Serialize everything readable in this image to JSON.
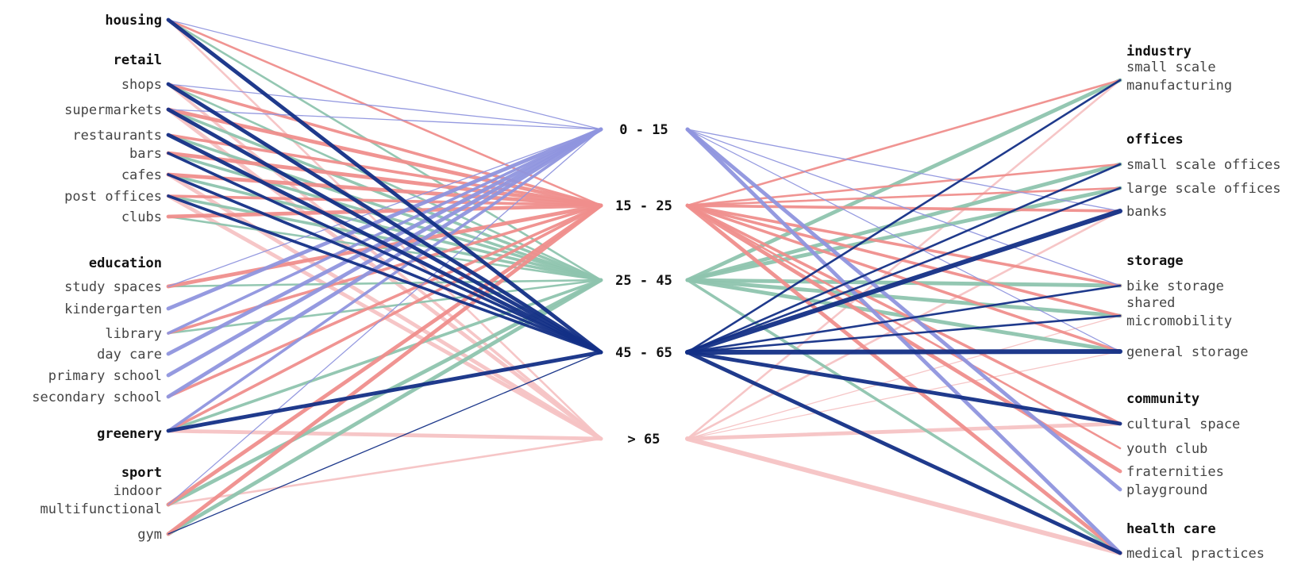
{
  "age_groups": [
    "0 - 15",
    "15 - 25",
    "25 - 45",
    "45 - 65",
    "> 65"
  ],
  "colors": {
    "0 - 15": "#8f95de",
    "15 - 25": "#ef8e8c",
    "25 - 45": "#8ec4ae",
    "45 - 65": "#132f86",
    "> 65": "#f6c3c4"
  },
  "left_groups": [
    {
      "category": "housing",
      "items": []
    },
    {
      "category": "retail",
      "items": [
        "shops",
        "supermarkets",
        "restaurants",
        "bars",
        "cafes",
        "post offices",
        "clubs"
      ]
    },
    {
      "category": "education",
      "items": [
        "study spaces",
        "kindergarten",
        "library",
        "day care",
        "primary school",
        "secondary school"
      ]
    },
    {
      "category": "greenery",
      "items": []
    },
    {
      "category": "sport",
      "items": [
        "indoor\nmultifunctional",
        "gym"
      ]
    }
  ],
  "right_groups": [
    {
      "category": "industry",
      "items": [
        "small scale\nmanufacturing"
      ]
    },
    {
      "category": "offices",
      "items": [
        "small scale offices",
        "large scale offices",
        "banks"
      ]
    },
    {
      "category": "storage",
      "items": [
        "bike storage",
        "shared\nmicromobility",
        "general storage"
      ]
    },
    {
      "category": "community",
      "items": [
        "cultural space",
        "youth club",
        "fraternities",
        "playground"
      ]
    },
    {
      "category": "health care",
      "items": [
        "medical practices"
      ]
    }
  ],
  "links_left": [
    {
      "from": "housing",
      "to": "0 - 15",
      "w": 1
    },
    {
      "from": "housing",
      "to": "15 - 25",
      "w": 2
    },
    {
      "from": "housing",
      "to": "25 - 45",
      "w": 2
    },
    {
      "from": "housing",
      "to": "45 - 65",
      "w": 4
    },
    {
      "from": "housing",
      "to": "> 65",
      "w": 2
    },
    {
      "from": "shops",
      "to": "0 - 15",
      "w": 1
    },
    {
      "from": "shops",
      "to": "15 - 25",
      "w": 3
    },
    {
      "from": "shops",
      "to": "25 - 45",
      "w": 2
    },
    {
      "from": "shops",
      "to": "45 - 65",
      "w": 4
    },
    {
      "from": "shops",
      "to": "> 65",
      "w": 3
    },
    {
      "from": "supermarkets",
      "to": "0 - 15",
      "w": 1
    },
    {
      "from": "supermarkets",
      "to": "15 - 25",
      "w": 4
    },
    {
      "from": "supermarkets",
      "to": "25 - 45",
      "w": 3
    },
    {
      "from": "supermarkets",
      "to": "45 - 65",
      "w": 4
    },
    {
      "from": "supermarkets",
      "to": "> 65",
      "w": 4
    },
    {
      "from": "restaurants",
      "to": "15 - 25",
      "w": 3
    },
    {
      "from": "restaurants",
      "to": "25 - 45",
      "w": 3
    },
    {
      "from": "restaurants",
      "to": "45 - 65",
      "w": 4
    },
    {
      "from": "bars",
      "to": "15 - 25",
      "w": 4
    },
    {
      "from": "bars",
      "to": "25 - 45",
      "w": 3
    },
    {
      "from": "bars",
      "to": "45 - 65",
      "w": 3
    },
    {
      "from": "cafes",
      "to": "15 - 25",
      "w": 4
    },
    {
      "from": "cafes",
      "to": "25 - 45",
      "w": 3
    },
    {
      "from": "cafes",
      "to": "45 - 65",
      "w": 3
    },
    {
      "from": "cafes",
      "to": "> 65",
      "w": 4
    },
    {
      "from": "post offices",
      "to": "15 - 25",
      "w": 3
    },
    {
      "from": "post offices",
      "to": "25 - 45",
      "w": 3
    },
    {
      "from": "post offices",
      "to": "45 - 65",
      "w": 3
    },
    {
      "from": "post offices",
      "to": "> 65",
      "w": 4
    },
    {
      "from": "clubs",
      "to": "15 - 25",
      "w": 4
    },
    {
      "from": "clubs",
      "to": "25 - 45",
      "w": 2
    },
    {
      "from": "study spaces",
      "to": "0 - 15",
      "w": 1
    },
    {
      "from": "study spaces",
      "to": "15 - 25",
      "w": 4
    },
    {
      "from": "study spaces",
      "to": "25 - 45",
      "w": 2
    },
    {
      "from": "kindergarten",
      "to": "0 - 15",
      "w": 4
    },
    {
      "from": "library",
      "to": "15 - 25",
      "w": 3
    },
    {
      "from": "library",
      "to": "25 - 45",
      "w": 2
    },
    {
      "from": "library",
      "to": "0 - 15",
      "w": 3
    },
    {
      "from": "day care",
      "to": "0 - 15",
      "w": 4
    },
    {
      "from": "primary school",
      "to": "0 - 15",
      "w": 4
    },
    {
      "from": "secondary school",
      "to": "0 - 15",
      "w": 4
    },
    {
      "from": "secondary school",
      "to": "15 - 25",
      "w": 3
    },
    {
      "from": "greenery",
      "to": "0 - 15",
      "w": 3
    },
    {
      "from": "greenery",
      "to": "15 - 25",
      "w": 3
    },
    {
      "from": "greenery",
      "to": "25 - 45",
      "w": 3
    },
    {
      "from": "greenery",
      "to": "45 - 65",
      "w": 4
    },
    {
      "from": "greenery",
      "to": "> 65",
      "w": 4
    },
    {
      "from": "indoor\nmultifunctional",
      "to": "0 - 15",
      "w": 1
    },
    {
      "from": "indoor\nmultifunctional",
      "to": "15 - 25",
      "w": 4
    },
    {
      "from": "indoor\nmultifunctional",
      "to": "25 - 45",
      "w": 4
    },
    {
      "from": "indoor\nmultifunctional",
      "to": "> 65",
      "w": 2
    },
    {
      "from": "gym",
      "to": "15 - 25",
      "w": 4
    },
    {
      "from": "gym",
      "to": "25 - 45",
      "w": 4
    },
    {
      "from": "gym",
      "to": "45 - 65",
      "w": 1
    }
  ],
  "links_right": [
    {
      "from": "0 - 15",
      "to": "banks",
      "w": 1
    },
    {
      "from": "0 - 15",
      "to": "bike storage",
      "w": 1
    },
    {
      "from": "0 - 15",
      "to": "general storage",
      "w": 1
    },
    {
      "from": "0 - 15",
      "to": "playground",
      "w": 4
    },
    {
      "from": "0 - 15",
      "to": "medical practices",
      "w": 4
    },
    {
      "from": "15 - 25",
      "to": "small scale\nmanufacturing",
      "w": 2
    },
    {
      "from": "15 - 25",
      "to": "small scale offices",
      "w": 2
    },
    {
      "from": "15 - 25",
      "to": "large scale offices",
      "w": 2
    },
    {
      "from": "15 - 25",
      "to": "banks",
      "w": 3
    },
    {
      "from": "15 - 25",
      "to": "bike storage",
      "w": 3
    },
    {
      "from": "15 - 25",
      "to": "shared\nmicromobility",
      "w": 3
    },
    {
      "from": "15 - 25",
      "to": "general storage",
      "w": 3
    },
    {
      "from": "15 - 25",
      "to": "cultural space",
      "w": 3
    },
    {
      "from": "15 - 25",
      "to": "youth club",
      "w": 2
    },
    {
      "from": "15 - 25",
      "to": "fraternities",
      "w": 4
    },
    {
      "from": "15 - 25",
      "to": "medical practices",
      "w": 4
    },
    {
      "from": "25 - 45",
      "to": "small scale\nmanufacturing",
      "w": 4
    },
    {
      "from": "25 - 45",
      "to": "small scale offices",
      "w": 4
    },
    {
      "from": "25 - 45",
      "to": "large scale offices",
      "w": 4
    },
    {
      "from": "25 - 45",
      "to": "bike storage",
      "w": 4
    },
    {
      "from": "25 - 45",
      "to": "shared\nmicromobility",
      "w": 4
    },
    {
      "from": "25 - 45",
      "to": "general storage",
      "w": 4
    },
    {
      "from": "25 - 45",
      "to": "medical practices",
      "w": 3
    },
    {
      "from": "45 - 65",
      "to": "small scale\nmanufacturing",
      "w": 2
    },
    {
      "from": "45 - 65",
      "to": "small scale offices",
      "w": 2
    },
    {
      "from": "45 - 65",
      "to": "large scale offices",
      "w": 2
    },
    {
      "from": "45 - 65",
      "to": "banks",
      "w": 5
    },
    {
      "from": "45 - 65",
      "to": "bike storage",
      "w": 2
    },
    {
      "from": "45 - 65",
      "to": "shared\nmicromobility",
      "w": 2
    },
    {
      "from": "45 - 65",
      "to": "general storage",
      "w": 5
    },
    {
      "from": "45 - 65",
      "to": "cultural space",
      "w": 4
    },
    {
      "from": "45 - 65",
      "to": "medical practices",
      "w": 4
    },
    {
      "from": "> 65",
      "to": "small scale\nmanufacturing",
      "w": 2
    },
    {
      "from": "> 65",
      "to": "banks",
      "w": 2
    },
    {
      "from": "> 65",
      "to": "shared\nmicromobility",
      "w": 1
    },
    {
      "from": "> 65",
      "to": "general storage",
      "w": 1
    },
    {
      "from": "> 65",
      "to": "cultural space",
      "w": 4
    },
    {
      "from": "> 65",
      "to": "medical practices",
      "w": 5
    }
  ]
}
